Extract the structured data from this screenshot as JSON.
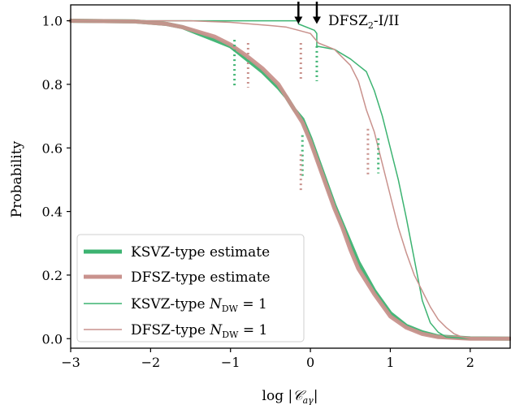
{
  "chart_data": {
    "type": "line",
    "xlabel": "log |𝒞aγ|",
    "ylabel": "Probability",
    "xlim": [
      -3,
      2.5
    ],
    "ylim": [
      -0.03,
      1.05
    ],
    "x_ticks": [
      "−3",
      "−2",
      "−1",
      "0",
      "1",
      "2"
    ],
    "x_tick_values": [
      -3,
      -2,
      -1,
      0,
      1,
      2
    ],
    "y_ticks": [
      "0.0",
      "0.2",
      "0.4",
      "0.6",
      "0.8",
      "1.0"
    ],
    "y_tick_values": [
      0,
      0.2,
      0.4,
      0.6,
      0.8,
      1.0
    ],
    "grid": false,
    "legend_position": "lower-left",
    "annotation": {
      "text": "DFSZ₂-I/II",
      "arrows_at_x": [
        -0.15,
        0.08
      ],
      "arrow_y_top": 1.06,
      "arrow_y_bottom": 0.99
    },
    "series": [
      {
        "name": "KSVZ-type estimate",
        "style": "thick",
        "color": "#3cb371",
        "x": [
          -3,
          -2.2,
          -1.8,
          -1.6,
          -1.4,
          -1.2,
          -1.0,
          -0.8,
          -0.6,
          -0.4,
          -0.3,
          -0.2,
          -0.1,
          0.0,
          0.1,
          0.2,
          0.3,
          0.4,
          0.5,
          0.6,
          0.8,
          1.0,
          1.2,
          1.4,
          1.6,
          2.0,
          2.5
        ],
        "y": [
          1.0,
          0.998,
          0.99,
          0.98,
          0.96,
          0.94,
          0.92,
          0.88,
          0.84,
          0.79,
          0.76,
          0.72,
          0.69,
          0.63,
          0.56,
          0.49,
          0.42,
          0.36,
          0.3,
          0.24,
          0.15,
          0.08,
          0.04,
          0.02,
          0.007,
          0.001,
          0.0
        ]
      },
      {
        "name": "DFSZ-type estimate",
        "style": "thick",
        "color": "#c9928d",
        "x": [
          -3,
          -2.2,
          -1.8,
          -1.6,
          -1.4,
          -1.2,
          -1.0,
          -0.8,
          -0.6,
          -0.4,
          -0.3,
          -0.2,
          -0.1,
          0.0,
          0.1,
          0.2,
          0.3,
          0.4,
          0.5,
          0.6,
          0.8,
          1.0,
          1.2,
          1.4,
          1.6,
          2.0,
          2.5
        ],
        "y": [
          1.0,
          0.998,
          0.99,
          0.98,
          0.965,
          0.95,
          0.925,
          0.89,
          0.85,
          0.8,
          0.76,
          0.72,
          0.68,
          0.62,
          0.55,
          0.48,
          0.41,
          0.35,
          0.28,
          0.22,
          0.14,
          0.07,
          0.035,
          0.015,
          0.005,
          0.0,
          0.0
        ]
      },
      {
        "name": "KSVZ-type N_DW = 1",
        "style": "thin",
        "color": "#3cb371",
        "x": [
          -3,
          -1.5,
          -1.0,
          -0.5,
          -0.3,
          -0.15,
          -0.15,
          0.05,
          0.08,
          0.08,
          0.3,
          0.5,
          0.6,
          0.7,
          0.8,
          0.9,
          1.0,
          1.1,
          1.2,
          1.3,
          1.4,
          1.5,
          1.6,
          1.7,
          2.0,
          2.5
        ],
        "y": [
          1.0,
          1.0,
          1.0,
          1.0,
          1.0,
          1.0,
          0.99,
          0.97,
          0.96,
          0.92,
          0.91,
          0.88,
          0.86,
          0.84,
          0.78,
          0.7,
          0.6,
          0.5,
          0.38,
          0.25,
          0.12,
          0.05,
          0.02,
          0.005,
          0.0,
          0.0
        ]
      },
      {
        "name": "DFSZ-type N_DW = 1",
        "style": "thin",
        "color": "#c9928d",
        "x": [
          -3,
          -1.5,
          -1.0,
          -0.5,
          -0.3,
          -0.15,
          0.0,
          0.1,
          0.3,
          0.5,
          0.6,
          0.7,
          0.8,
          0.9,
          1.0,
          1.1,
          1.2,
          1.3,
          1.4,
          1.5,
          1.6,
          1.7,
          1.8,
          1.9,
          2.0,
          2.5
        ],
        "y": [
          1.0,
          1.0,
          0.995,
          0.985,
          0.98,
          0.97,
          0.96,
          0.93,
          0.91,
          0.86,
          0.81,
          0.72,
          0.65,
          0.55,
          0.45,
          0.35,
          0.27,
          0.2,
          0.15,
          0.1,
          0.06,
          0.035,
          0.015,
          0.005,
          0.0,
          0.0
        ]
      }
    ],
    "dotted_markers": [
      {
        "x": -0.95,
        "y_top": 0.94,
        "y_bottom": 0.79,
        "color": "#3cb371"
      },
      {
        "x": -0.78,
        "y_top": 0.93,
        "y_bottom": 0.79,
        "color": "#c9928d"
      },
      {
        "x": -0.12,
        "y_top": 0.93,
        "y_bottom": 0.81,
        "color": "#c9928d"
      },
      {
        "x": 0.08,
        "y_top": 0.92,
        "y_bottom": 0.81,
        "color": "#3cb371"
      },
      {
        "x": -0.1,
        "y_top": 0.64,
        "y_bottom": 0.51,
        "color": "#3cb371"
      },
      {
        "x": -0.12,
        "y_top": 0.58,
        "y_bottom": 0.46,
        "color": "#c9928d"
      },
      {
        "x": 0.72,
        "y_top": 0.66,
        "y_bottom": 0.51,
        "color": "#c9928d"
      },
      {
        "x": 0.85,
        "y_top": 0.63,
        "y_bottom": 0.52,
        "color": "#3cb371"
      }
    ]
  },
  "legend": {
    "items": [
      {
        "label": "KSVZ-type estimate",
        "color": "#3cb371",
        "style": "thick"
      },
      {
        "label": "DFSZ-type estimate",
        "color": "#c9928d",
        "style": "thick"
      },
      {
        "label": "KSVZ-type N_DW = 1",
        "color": "#3cb371",
        "style": "thin"
      },
      {
        "label": "DFSZ-type N_DW = 1",
        "color": "#c9928d",
        "style": "thin"
      }
    ]
  }
}
